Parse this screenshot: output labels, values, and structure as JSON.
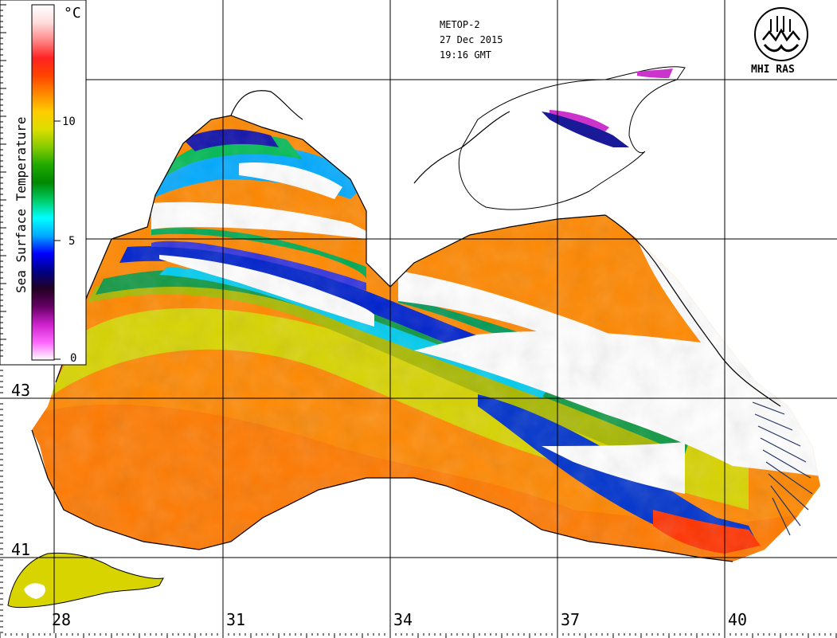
{
  "header": {
    "satellite": "METOP-2",
    "date": "27 Dec 2015",
    "time": "19:16 GMT",
    "organization": "MHI RAS"
  },
  "colorbar": {
    "title": "Sea Surface Temperature",
    "unit": "°C",
    "ticks": [
      "0",
      "5",
      "10"
    ],
    "stops": [
      "#ffffff",
      "#ff66ff",
      "#cc22cc",
      "#660066",
      "#220022",
      "#000088",
      "#0000ff",
      "#00aaff",
      "#00ffff",
      "#00cc66",
      "#008800",
      "#22aa00",
      "#88cc00",
      "#dddd00",
      "#ffcc00",
      "#ff8800",
      "#ff4400",
      "#ff2222",
      "#ff8888",
      "#ffdddd",
      "#ffffff"
    ]
  },
  "axes": {
    "longitude_labels": [
      "28",
      "31",
      "34",
      "37",
      "40"
    ],
    "latitude_labels": [
      "43",
      "41"
    ]
  },
  "colors": {
    "coast": "#000000",
    "grid": "#000000",
    "warm": "#ff8800",
    "mid": "#dddd00",
    "cool": "#00aa22",
    "cold": "#0000cc",
    "cloud": "#ffffff"
  }
}
